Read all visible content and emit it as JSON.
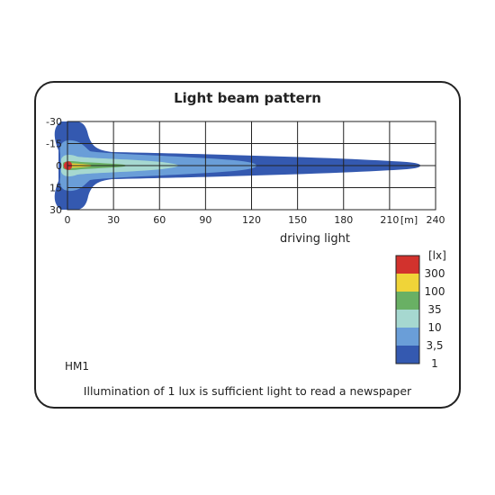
{
  "chart_data": {
    "type": "heatmap",
    "title": "Light beam pattern",
    "xlabel": "driving light",
    "x_unit_label": "[m]",
    "x_ticks": [
      "0",
      "30",
      "60",
      "90",
      "120",
      "150",
      "180",
      "210",
      "240"
    ],
    "y_ticks": [
      "-30",
      "-15",
      "0",
      "15",
      "30"
    ],
    "xlim": [
      0,
      240
    ],
    "ylim": [
      -30,
      30
    ],
    "grid": true,
    "legend": {
      "unit": "[lx]",
      "placement": "bottom-right",
      "levels": [
        {
          "label": "300",
          "color": "#d2322d"
        },
        {
          "label": "100",
          "color": "#f0d438"
        },
        {
          "label": "35",
          "color": "#69b064"
        },
        {
          "label": "10",
          "color": "#a6d8d0"
        },
        {
          "label": "3,5",
          "color": "#6a9ed8"
        },
        {
          "label": "1",
          "color": "#3459b0"
        }
      ]
    },
    "contours": [
      {
        "lux": 1,
        "reach_m": 230,
        "max_half_width_m": 30
      },
      {
        "lux": 3.5,
        "reach_m": 122,
        "max_half_width_m": 24
      },
      {
        "lux": 10,
        "reach_m": 72,
        "max_half_width_m": 12
      },
      {
        "lux": 35,
        "reach_m": 40,
        "max_half_width_m": 5
      },
      {
        "lux": 100,
        "reach_m": 20,
        "max_half_width_m": 2
      },
      {
        "lux": 300,
        "reach_m": 6,
        "max_half_width_m": 1.5
      }
    ]
  },
  "model_label": "HM1",
  "footnote": "Illumination of 1 lux is sufficient light to read a newspaper"
}
